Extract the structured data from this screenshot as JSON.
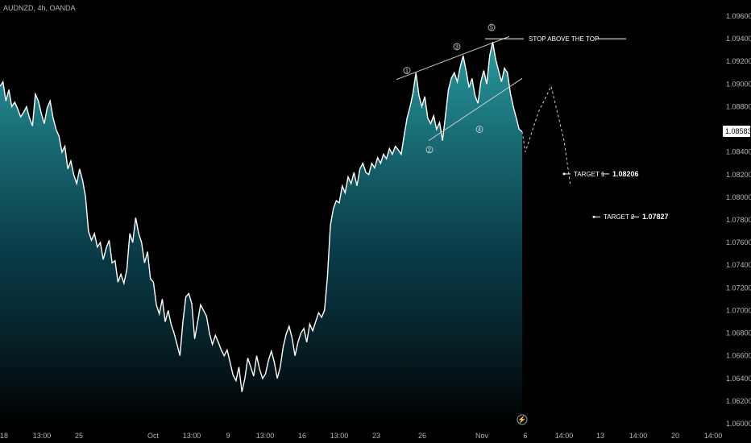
{
  "header": {
    "symbol": "AUDNZD, 4h, OANDA"
  },
  "chart_data": {
    "type": "area",
    "title": "",
    "ylim": [
      1.06,
      1.096
    ],
    "y_ticks": [
      "1.09600",
      "1.09400",
      "1.09200",
      "1.09000",
      "1.08800",
      "1.08600",
      "1.08400",
      "1.08200",
      "1.08000",
      "1.07800",
      "1.07600",
      "1.07400",
      "1.07200",
      "1.07000",
      "1.06800",
      "1.06600",
      "1.06400",
      "1.06200",
      "1.06000"
    ],
    "x_ticks": [
      "18",
      "13:00",
      "25",
      "Oct",
      "13:00",
      "9",
      "13:00",
      "16",
      "13:00",
      "23",
      "26",
      "Nov",
      "6",
      "14:00",
      "13",
      "14:00",
      "20",
      "14:00"
    ],
    "last_price": "1.08583",
    "series": [
      {
        "values": [
          1.0898,
          1.0902,
          1.0885,
          1.0895,
          1.088,
          1.0884,
          1.0878,
          1.0871,
          1.0875,
          1.088,
          1.087,
          1.0863,
          1.0891,
          1.0885,
          1.0874,
          1.0865,
          1.0879,
          1.0885,
          1.087,
          1.086,
          1.0854,
          1.084,
          1.0845,
          1.0825,
          1.0832,
          1.082,
          1.0812,
          1.0825,
          1.0815,
          1.08,
          1.077,
          1.0762,
          1.0768,
          1.0756,
          1.076,
          1.0745,
          1.0755,
          1.0762,
          1.0742,
          1.0744,
          1.0725,
          1.0732,
          1.0724,
          1.0736,
          1.0768,
          1.076,
          1.0782,
          1.0768,
          1.076,
          1.0742,
          1.0752,
          1.0728,
          1.0725,
          1.0705,
          1.0697,
          1.071,
          1.069,
          1.07,
          1.0688,
          1.068,
          1.067,
          1.066,
          1.069,
          1.0712,
          1.0715,
          1.0706,
          1.0675,
          1.069,
          1.0705,
          1.07,
          1.0695,
          1.068,
          1.067,
          1.0678,
          1.0672,
          1.0665,
          1.066,
          1.0665,
          1.0654,
          1.0643,
          1.0638,
          1.065,
          1.0628,
          1.064,
          1.0658,
          1.065,
          1.0642,
          1.066,
          1.0648,
          1.064,
          1.0644,
          1.0656,
          1.0664,
          1.0654,
          1.064,
          1.065,
          1.0668,
          1.0679,
          1.0686,
          1.0676,
          1.066,
          1.0672,
          1.068,
          1.0684,
          1.0672,
          1.0688,
          1.0682,
          1.069,
          1.0698,
          1.0694,
          1.07,
          1.073,
          1.0775,
          1.079,
          1.0797,
          1.0795,
          1.081,
          1.0804,
          1.0818,
          1.0812,
          1.0822,
          1.081,
          1.0825,
          1.083,
          1.0822,
          1.082,
          1.083,
          1.0826,
          1.0835,
          1.083,
          1.0838,
          1.0834,
          1.0843,
          1.0838,
          1.0845,
          1.0842,
          1.0838,
          1.0855,
          1.087,
          1.088,
          1.0892,
          1.091,
          1.089,
          1.088,
          1.0889,
          1.087,
          1.0865,
          1.0872,
          1.086,
          1.0866,
          1.085,
          1.0872,
          1.0895,
          1.0905,
          1.091,
          1.0902,
          1.0915,
          1.0925,
          1.0912,
          1.0897,
          1.0905,
          1.089,
          1.0883,
          1.0902,
          1.0912,
          1.09,
          1.0925,
          1.0937,
          1.0922,
          1.0912,
          1.0902,
          1.0914,
          1.091,
          1.0892,
          1.088,
          1.087,
          1.086,
          1.0858
        ],
        "projection": [
          1.0858,
          1.084,
          1.0875,
          1.0898,
          1.085,
          1.081
        ]
      }
    ],
    "annotations": {
      "stop_label": "STOP ABOVE THE TOP",
      "target1_label": "TARGET 1",
      "target1_value": "1.08206",
      "target2_label": "TARGET 2",
      "target2_value": "1.07827",
      "waves": [
        "1",
        "2",
        "3",
        "4",
        "5"
      ]
    },
    "colors": {
      "line": "#ffffff",
      "fill_top": "#2aa3a8",
      "fill_bottom": "#000000",
      "text": "#b2b5be"
    },
    "grid": false,
    "legend": "none"
  }
}
